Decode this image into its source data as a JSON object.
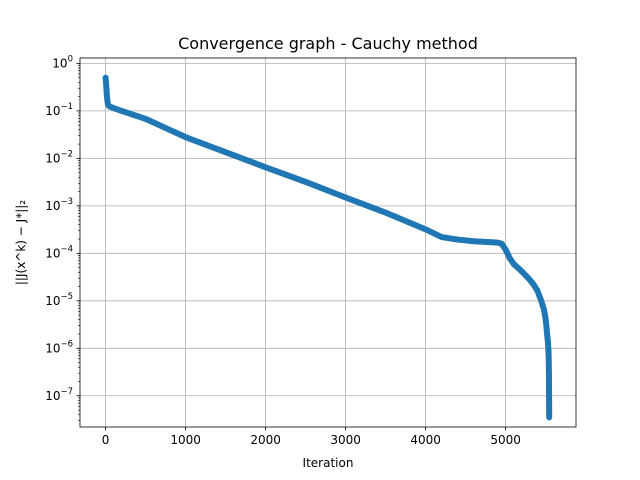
{
  "chart_data": {
    "type": "line",
    "title": "Convergence graph - Cauchy method",
    "xlabel": "Iteration",
    "ylabel": "||J(x^k) − J*||₂",
    "yscale": "log",
    "xlim": [
      -320,
      5880
    ],
    "ylim": [
      2.2e-08,
      1.3
    ],
    "grid": true,
    "x_ticks": [
      0,
      1000,
      2000,
      3000,
      4000,
      5000
    ],
    "x_tick_labels": [
      "0",
      "1000",
      "2000",
      "3000",
      "4000",
      "5000"
    ],
    "y_ticks": [
      1e-07,
      1e-06,
      1e-05,
      0.0001,
      0.001,
      0.01,
      0.1,
      1.0
    ],
    "y_tick_labels": [
      {
        "base": "10",
        "exp": "−7"
      },
      {
        "base": "10",
        "exp": "−6"
      },
      {
        "base": "10",
        "exp": "−5"
      },
      {
        "base": "10",
        "exp": "−4"
      },
      {
        "base": "10",
        "exp": "−3"
      },
      {
        "base": "10",
        "exp": "−2"
      },
      {
        "base": "10",
        "exp": "−1"
      },
      {
        "base": "10",
        "exp": "0"
      }
    ],
    "series": [
      {
        "color": "#1f77b4",
        "marker": "circle",
        "x": [
          0,
          5,
          10,
          15,
          20,
          25,
          30,
          40,
          60,
          100,
          200,
          500,
          1000,
          1500,
          2000,
          2500,
          3000,
          3500,
          4000,
          4200,
          4400,
          4600,
          4800,
          4900,
          4950,
          5000,
          5050,
          5100,
          5200,
          5300,
          5350,
          5400,
          5450,
          5480,
          5500,
          5510,
          5520,
          5530,
          5535,
          5538,
          5540,
          5542,
          5543,
          5544,
          5545
        ],
        "y": [
          0.5,
          0.4,
          0.3,
          0.22,
          0.18,
          0.15,
          0.135,
          0.127,
          0.122,
          0.115,
          0.1,
          0.068,
          0.028,
          0.0135,
          0.0065,
          0.0032,
          0.0015,
          0.00072,
          0.00032,
          0.00022,
          0.000195,
          0.00018,
          0.000172,
          0.000168,
          0.00016,
          0.00012,
          8e-05,
          6e-05,
          4.2e-05,
          2.8e-05,
          2.2e-05,
          1.6e-05,
          9.5e-06,
          6.5e-06,
          4.2e-06,
          2.9e-06,
          1.9e-06,
          1.3e-06,
          9.5e-07,
          7e-07,
          4.8e-07,
          2.9e-07,
          1.2e-07,
          7.5e-08,
          3.5e-08
        ]
      }
    ]
  }
}
